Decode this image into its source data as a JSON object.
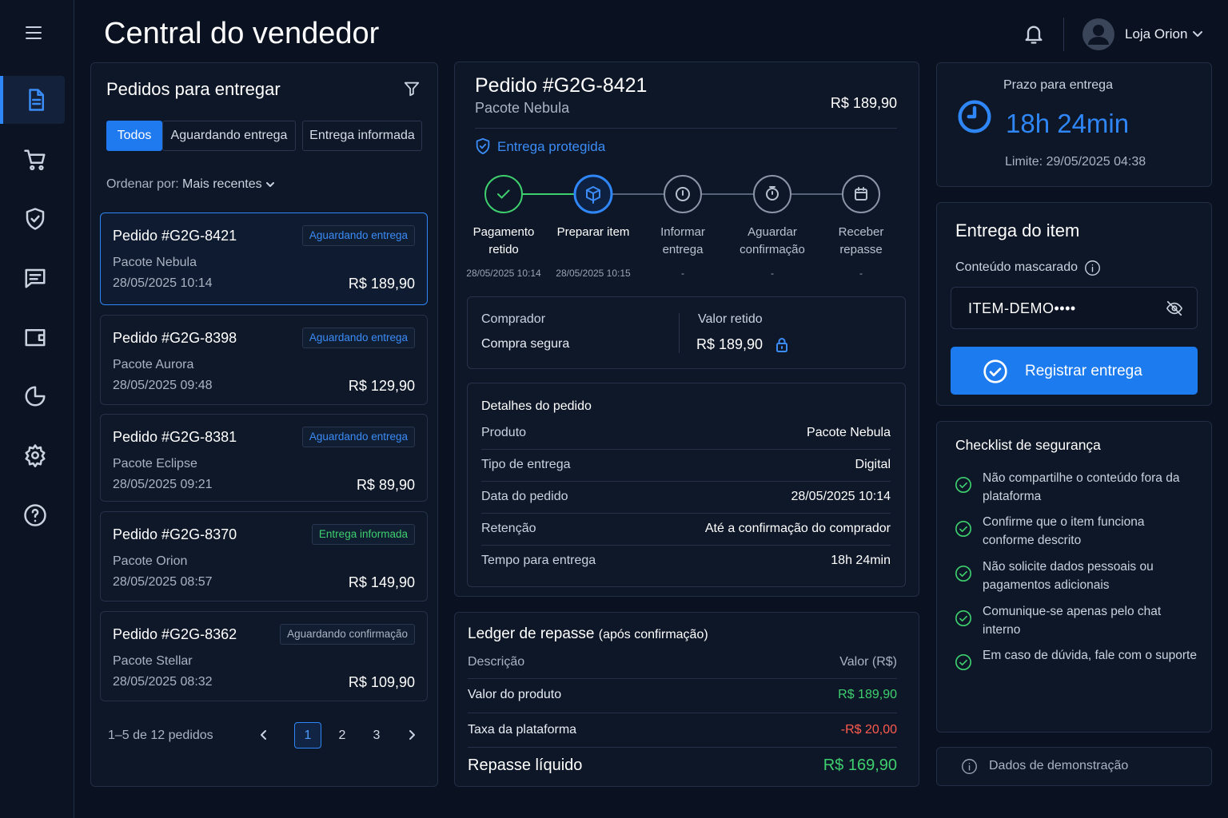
{
  "header": {
    "title": "Central do vendedor",
    "user": "Loja Orion"
  },
  "orders_panel": {
    "title": "Pedidos para entregar",
    "tabs": [
      "Todos",
      "Aguardando entrega",
      "Entrega informada"
    ],
    "sort_label": "Ordenar por:",
    "sort_value": "Mais recentes",
    "orders": [
      {
        "id": "Pedido #G2G-8421",
        "status": "Aguardando entrega",
        "status_color": "#3b8cf7",
        "product": "Pacote Nebula",
        "date": "28/05/2025 10:14",
        "price": "R$ 189,90"
      },
      {
        "id": "Pedido #G2G-8398",
        "status": "Aguardando entrega",
        "status_color": "#3b8cf7",
        "product": "Pacote Aurora",
        "date": "28/05/2025 09:48",
        "price": "R$ 129,90"
      },
      {
        "id": "Pedido #G2G-8381",
        "status": "Aguardando entrega",
        "status_color": "#3b8cf7",
        "product": "Pacote Eclipse",
        "date": "28/05/2025 09:21",
        "price": "R$ 89,90"
      },
      {
        "id": "Pedido #G2G-8370",
        "status": "Entrega informada",
        "status_color": "#3ecf6e",
        "product": "Pacote Orion",
        "date": "28/05/2025 08:57",
        "price": "R$ 149,90"
      },
      {
        "id": "Pedido #G2G-8362",
        "status": "Aguardando confirmação",
        "status_color": "#aab4c3",
        "product": "Pacote Stellar",
        "date": "28/05/2025 08:32",
        "price": "R$ 109,90"
      }
    ],
    "pagination": {
      "summary": "1–5 de 12 pedidos",
      "pages": [
        "1",
        "2",
        "3"
      ]
    }
  },
  "order": {
    "title": "Pedido #G2G-8421",
    "product": "Pacote Nebula",
    "price": "R$ 189,90",
    "protection": "Entrega protegida",
    "steps": [
      {
        "label": "Pagamento retido",
        "date": "28/05/2025 10:14"
      },
      {
        "label": "Preparar item",
        "date": "28/05/2025 10:15"
      },
      {
        "label": "Informar entrega",
        "date": "-"
      },
      {
        "label": "Aguardar confirmação",
        "date": "-"
      },
      {
        "label": "Receber repasse",
        "date": "-"
      }
    ],
    "buyer": {
      "label": "Comprador",
      "value": "Compra segura"
    },
    "held": {
      "label": "Valor retido",
      "value": "R$ 189,90"
    },
    "details": {
      "title": "Detalhes do pedido",
      "rows": [
        [
          "Produto",
          "Pacote Nebula"
        ],
        [
          "Tipo de entrega",
          "Digital"
        ],
        [
          "Data do pedido",
          "28/05/2025 10:14"
        ],
        [
          "Retenção",
          "Até a confirmação do comprador"
        ],
        [
          "Tempo para entrega",
          "18h 24min"
        ]
      ]
    }
  },
  "ledger": {
    "title": "Ledger de repasse",
    "subtitle": "(após confirmação)",
    "header": [
      "Descrição",
      "Valor (R$)"
    ],
    "rows": [
      [
        "Valor do produto",
        "R$ 189,90"
      ],
      [
        "Taxa da plataforma",
        "-R$ 20,00"
      ]
    ],
    "total": [
      "Repasse líquido",
      "R$ 169,90"
    ]
  },
  "deadline": {
    "label": "Prazo para entrega",
    "value": "18h 24min",
    "limit": "Limite: 29/05/2025 04:38"
  },
  "delivery": {
    "title": "Entrega do item",
    "field_label": "Conteúdo mascarado",
    "field_value": "ITEM-DEMO••••",
    "button": "Registrar entrega"
  },
  "checklist": {
    "title": "Checklist de segurança",
    "items": [
      "Não compartilhe o conteúdo fora da plataforma",
      "Confirme que o item funciona conforme descrito",
      "Não solicite dados pessoais ou pagamentos adicionais",
      "Comunique-se apenas pelo chat interno",
      "Em caso de dúvida, fale com o suporte"
    ]
  },
  "footer_note": "Dados de demonstração"
}
